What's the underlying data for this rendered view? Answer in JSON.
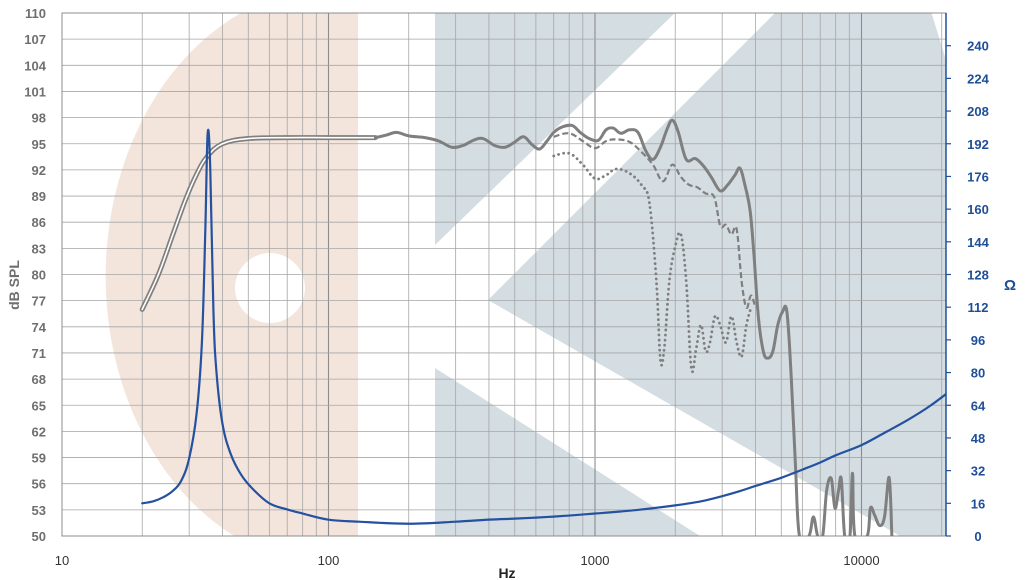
{
  "chart_data": {
    "type": "line",
    "title": "",
    "xlabel": "Hz",
    "ylabel_left": "dB SPL",
    "ylabel_right": "Ω",
    "x_scale": "log",
    "xlim": [
      10,
      22000
    ],
    "ylim_left": [
      50,
      110
    ],
    "ylim_right": [
      0,
      256
    ],
    "grid": true,
    "legend": "none",
    "x_ticks": [
      10,
      100,
      1000,
      10000
    ],
    "x_tick_labels": [
      "10",
      "100",
      "1000",
      "10000"
    ],
    "y_left_ticks": [
      110,
      107,
      104,
      101,
      98,
      95,
      92,
      89,
      86,
      83,
      80,
      77,
      74,
      71,
      68,
      65,
      62,
      59,
      56,
      53,
      50
    ],
    "y_left_tick_labels": [
      "110",
      "107",
      "104",
      "101",
      "98",
      "95",
      "92",
      "89",
      "86",
      "83",
      "80",
      "77",
      "74",
      "71",
      "68",
      "65",
      "62",
      "59",
      "56",
      "53",
      "50"
    ],
    "y_right_ticks": [
      240,
      224,
      208,
      192,
      176,
      160,
      144,
      128,
      112,
      96,
      80,
      64,
      48,
      32,
      16,
      0
    ],
    "y_right_tick_labels": [
      "240",
      "224",
      "208",
      "192",
      "176",
      "160",
      "144",
      "128",
      "112",
      "96",
      "80",
      "64",
      "48",
      "32",
      "16",
      "0"
    ],
    "colors": {
      "spl": "#7f7f7f",
      "impedance": "#2451a0",
      "grid": "#a6a6a6",
      "watermark_peach": "#f3e4dc",
      "watermark_slate": "#d3dde2",
      "left_axis_text": "#6f6f6f",
      "right_axis_text": "#1f4e99"
    },
    "series": [
      {
        "axis": "left",
        "style": "double",
        "points": [
          [
            20,
            76
          ],
          [
            23,
            80
          ],
          [
            26,
            84.5
          ],
          [
            29,
            88.5
          ],
          [
            32,
            91.5
          ],
          [
            35,
            93.5
          ],
          [
            40,
            95
          ],
          [
            50,
            95.6
          ],
          [
            70,
            95.7
          ],
          [
            100,
            95.7
          ],
          [
            150,
            95.7
          ]
        ]
      },
      {
        "axis": "left",
        "style": "solid",
        "points": [
          [
            150,
            95.7
          ],
          [
            165,
            96
          ],
          [
            180,
            96.3
          ],
          [
            200,
            95.9
          ],
          [
            230,
            95.7
          ],
          [
            260,
            95.3
          ],
          [
            290,
            94.6
          ],
          [
            320,
            94.8
          ],
          [
            350,
            95.4
          ],
          [
            380,
            95.6
          ],
          [
            420,
            94.8
          ],
          [
            460,
            94.6
          ],
          [
            500,
            95.2
          ],
          [
            540,
            95.8
          ],
          [
            580,
            94.9
          ],
          [
            620,
            94.4
          ],
          [
            660,
            95.3
          ],
          [
            700,
            96.3
          ],
          [
            750,
            96.9
          ],
          [
            820,
            97.1
          ],
          [
            880,
            96.3
          ],
          [
            950,
            95.6
          ],
          [
            1030,
            95.4
          ],
          [
            1100,
            96.6
          ],
          [
            1170,
            96.8
          ],
          [
            1250,
            96.2
          ],
          [
            1350,
            96.6
          ],
          [
            1450,
            96.3
          ],
          [
            1550,
            94.2
          ],
          [
            1650,
            93.2
          ],
          [
            1760,
            94.6
          ],
          [
            1860,
            96.6
          ],
          [
            1950,
            97.7
          ],
          [
            2050,
            96.4
          ],
          [
            2200,
            93.2
          ],
          [
            2380,
            93.3
          ],
          [
            2560,
            92.4
          ],
          [
            2740,
            91.1
          ],
          [
            2950,
            89.6
          ],
          [
            3150,
            90.3
          ],
          [
            3350,
            91.4
          ],
          [
            3500,
            92.2
          ],
          [
            3650,
            90.3
          ],
          [
            3820,
            87.3
          ],
          [
            3950,
            82.2
          ],
          [
            4100,
            75.2
          ],
          [
            4280,
            71.2
          ],
          [
            4450,
            70.4
          ],
          [
            4650,
            71.2
          ],
          [
            4850,
            74.2
          ],
          [
            5050,
            75.7
          ],
          [
            5250,
            75.7
          ],
          [
            5450,
            68.2
          ],
          [
            5650,
            58.2
          ],
          [
            5850,
            50
          ],
          [
            6350,
            50
          ],
          [
            6600,
            52.2
          ],
          [
            6850,
            50
          ],
          [
            7150,
            50
          ],
          [
            7400,
            55.2
          ],
          [
            7700,
            56.6
          ],
          [
            7950,
            53.2
          ],
          [
            8200,
            55.2
          ],
          [
            8400,
            56.5
          ],
          [
            8650,
            50
          ],
          [
            9050,
            50
          ],
          [
            9250,
            57.2
          ],
          [
            9450,
            50
          ],
          [
            10500,
            50
          ],
          [
            10800,
            53.2
          ],
          [
            11200,
            52.4
          ],
          [
            11700,
            51.2
          ],
          [
            12200,
            52.2
          ],
          [
            12700,
            56.7
          ],
          [
            13000,
            50
          ]
        ]
      },
      {
        "axis": "left",
        "style": "dashed",
        "points": [
          [
            700,
            95.8
          ],
          [
            800,
            96.2
          ],
          [
            900,
            95.3
          ],
          [
            1000,
            94.5
          ],
          [
            1100,
            95.3
          ],
          [
            1200,
            95.5
          ],
          [
            1350,
            95.2
          ],
          [
            1500,
            94.0
          ],
          [
            1650,
            92.6
          ],
          [
            1800,
            90.7
          ],
          [
            1950,
            92.6
          ],
          [
            2100,
            91.2
          ],
          [
            2250,
            90.3
          ],
          [
            2420,
            90.0
          ],
          [
            2600,
            89.3
          ],
          [
            2800,
            88.9
          ],
          [
            2950,
            85.6
          ],
          [
            3100,
            85.7
          ],
          [
            3250,
            84.6
          ],
          [
            3400,
            85.2
          ],
          [
            3550,
            79.2
          ],
          [
            3700,
            76.2
          ],
          [
            3850,
            77.6
          ],
          [
            4000,
            76.2
          ]
        ]
      },
      {
        "axis": "left",
        "style": "dotted",
        "points": [
          [
            700,
            93.6
          ],
          [
            800,
            93.9
          ],
          [
            900,
            92.6
          ],
          [
            1000,
            91.0
          ],
          [
            1100,
            91.4
          ],
          [
            1200,
            92.1
          ],
          [
            1350,
            91.6
          ],
          [
            1500,
            90.2
          ],
          [
            1600,
            88.2
          ],
          [
            1700,
            79.2
          ],
          [
            1760,
            70.2
          ],
          [
            1820,
            71.6
          ],
          [
            1900,
            79.2
          ],
          [
            2000,
            83.2
          ],
          [
            2100,
            84.6
          ],
          [
            2200,
            79.2
          ],
          [
            2300,
            69.2
          ],
          [
            2400,
            71.6
          ],
          [
            2500,
            74.2
          ],
          [
            2600,
            71.2
          ],
          [
            2700,
            72.2
          ],
          [
            2820,
            75.2
          ],
          [
            2950,
            74.2
          ],
          [
            3100,
            72.2
          ],
          [
            3250,
            75.2
          ],
          [
            3400,
            72.2
          ],
          [
            3550,
            70.6
          ],
          [
            3700,
            74.2
          ],
          [
            3850,
            76.2
          ]
        ]
      },
      {
        "axis": "right",
        "style": "solid",
        "points": [
          [
            20,
            16
          ],
          [
            22,
            17
          ],
          [
            24,
            19
          ],
          [
            26,
            22
          ],
          [
            28,
            27
          ],
          [
            30,
            38
          ],
          [
            32,
            60
          ],
          [
            33.5,
            95
          ],
          [
            34.5,
            150
          ],
          [
            35.2,
            197
          ],
          [
            36,
            180
          ],
          [
            37,
            110
          ],
          [
            38,
            80
          ],
          [
            40,
            55
          ],
          [
            43,
            40
          ],
          [
            47,
            30
          ],
          [
            52,
            23
          ],
          [
            60,
            16
          ],
          [
            70,
            13
          ],
          [
            80,
            11
          ],
          [
            100,
            8
          ],
          [
            130,
            7
          ],
          [
            200,
            6
          ],
          [
            300,
            7
          ],
          [
            400,
            8
          ],
          [
            500,
            8.5
          ],
          [
            600,
            9
          ],
          [
            700,
            9.5
          ],
          [
            800,
            10
          ],
          [
            1000,
            11
          ],
          [
            1200,
            11.8
          ],
          [
            1500,
            13
          ],
          [
            2000,
            15
          ],
          [
            2500,
            17
          ],
          [
            3000,
            19.5
          ],
          [
            3500,
            22
          ],
          [
            4000,
            24.5
          ],
          [
            5000,
            28.5
          ],
          [
            6000,
            32.5
          ],
          [
            7000,
            36
          ],
          [
            8000,
            39.5
          ],
          [
            10000,
            44.5
          ],
          [
            12000,
            50
          ],
          [
            15000,
            57
          ],
          [
            18000,
            63.5
          ],
          [
            21500,
            71
          ]
        ]
      }
    ]
  }
}
